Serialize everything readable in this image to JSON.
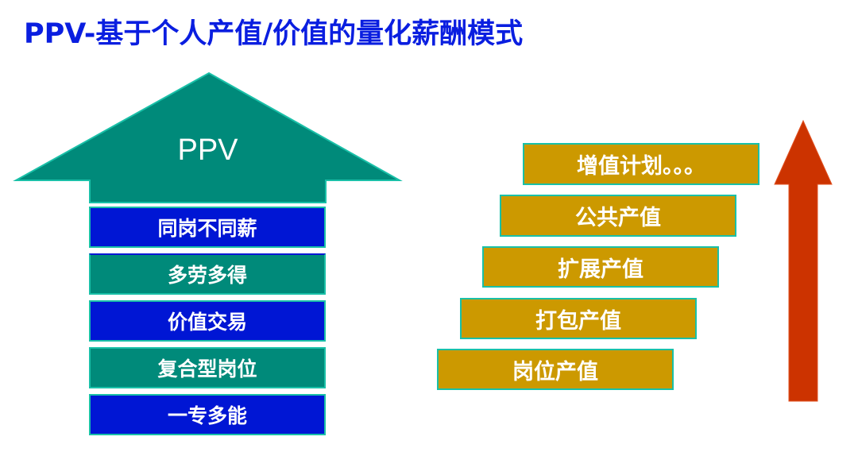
{
  "title": "PPV-基于个人产值/价值的量化薪酬模式",
  "left_arrow": {
    "label": "PPV",
    "color": "#008A7A",
    "items": [
      {
        "label": "同岗不同薪",
        "color": "#0016D4"
      },
      {
        "label": "多劳多得",
        "color": "#008A7A"
      },
      {
        "label": "价值交易",
        "color": "#0016D4"
      },
      {
        "label": "复合型岗位",
        "color": "#008A7A"
      },
      {
        "label": "一专多能",
        "color": "#0016D4"
      }
    ]
  },
  "staircase": {
    "color": "#CC9900",
    "items": [
      {
        "label": "增值计划。。。"
      },
      {
        "label": "公共产值"
      },
      {
        "label": "扩展产值"
      },
      {
        "label": "打包产值"
      },
      {
        "label": "岗位产值"
      }
    ]
  },
  "up_arrow_color": "#CC3300"
}
